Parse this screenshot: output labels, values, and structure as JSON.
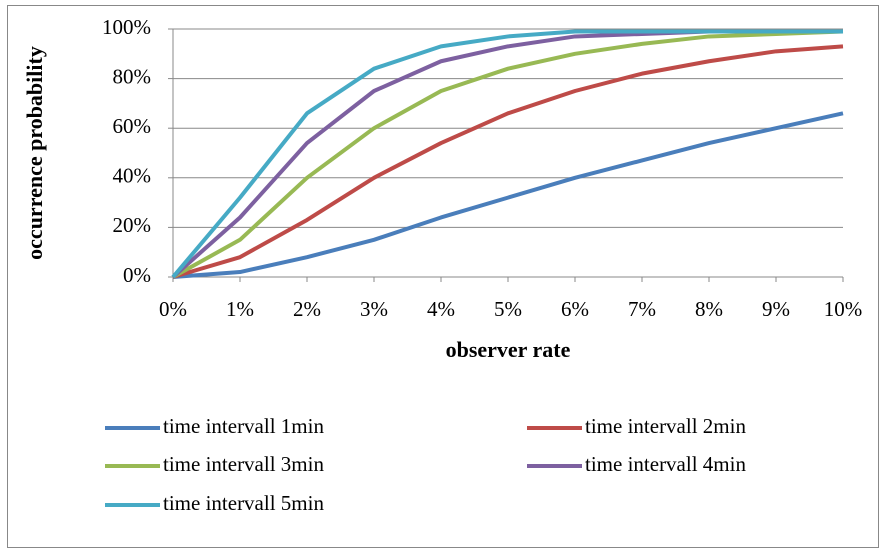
{
  "chart_data": {
    "type": "line",
    "x_label": "observer rate",
    "y_label": "occurrence probability",
    "categories": [
      "0%",
      "1%",
      "2%",
      "3%",
      "4%",
      "5%",
      "6%",
      "7%",
      "8%",
      "9%",
      "10%"
    ],
    "series": [
      {
        "name": "time intervall 1min",
        "color": "#4a7ebb",
        "values": [
          0,
          2,
          8,
          15,
          24,
          32,
          40,
          47,
          54,
          60,
          66
        ]
      },
      {
        "name": "time intervall 2min",
        "color": "#be4b48",
        "values": [
          0,
          8,
          23,
          40,
          54,
          66,
          75,
          82,
          87,
          91,
          93
        ]
      },
      {
        "name": "time intervall 3min",
        "color": "#98b954",
        "values": [
          0,
          15,
          40,
          60,
          75,
          84,
          90,
          94,
          97,
          98,
          99
        ]
      },
      {
        "name": "time intervall 4min",
        "color": "#7d60a0",
        "values": [
          0,
          24,
          54,
          75,
          87,
          93,
          97,
          98,
          99,
          99,
          99
        ]
      },
      {
        "name": "time intervall 5min",
        "color": "#46aac5",
        "values": [
          0,
          32,
          66,
          84,
          93,
          97,
          99,
          99,
          99,
          99,
          99
        ]
      }
    ],
    "ylim": [
      0,
      100
    ],
    "yticks": [
      {
        "value": 0,
        "label": "0%"
      },
      {
        "value": 20,
        "label": "20%"
      },
      {
        "value": 40,
        "label": "40%"
      },
      {
        "value": 60,
        "label": "60%"
      },
      {
        "value": 80,
        "label": "80%"
      },
      {
        "value": 100,
        "label": "100%"
      }
    ],
    "grid": true,
    "legend": "bottom"
  }
}
